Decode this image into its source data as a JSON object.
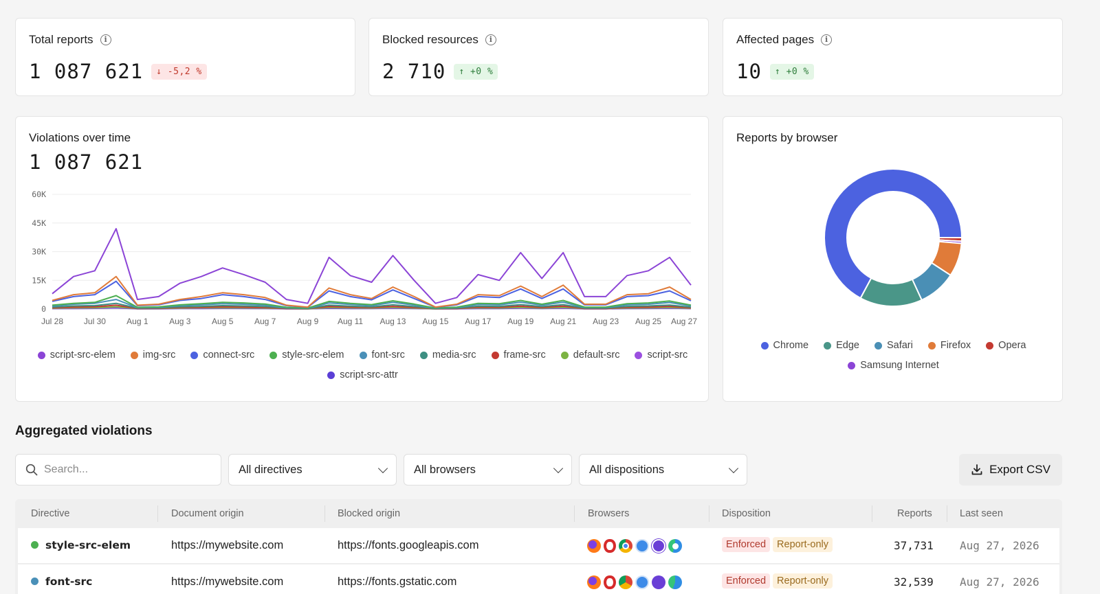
{
  "kpis": [
    {
      "label": "Total reports",
      "value": "1 087 621",
      "delta": "↓ -5,2 %",
      "trend": "down"
    },
    {
      "label": "Blocked resources",
      "value": "2 710",
      "delta": "↑ +0 %",
      "trend": "up"
    },
    {
      "label": "Affected pages",
      "value": "10",
      "delta": "↑ +0 %",
      "trend": "up"
    }
  ],
  "violations_chart": {
    "title": "Violations over time",
    "total": "1 087 621",
    "y_ticks": [
      "60K",
      "45K",
      "30K",
      "15K",
      "0"
    ],
    "x_ticks": [
      "Jul 28",
      "Jul 30",
      "Aug 1",
      "Aug 3",
      "Aug 5",
      "Aug 7",
      "Aug 9",
      "Aug 11",
      "Aug 13",
      "Aug 15",
      "Aug 17",
      "Aug 19",
      "Aug 21",
      "Aug 23",
      "Aug 25",
      "Aug 27"
    ],
    "legend": [
      {
        "label": "script-src-elem",
        "color": "#8b44d6"
      },
      {
        "label": "img-src",
        "color": "#e07b39"
      },
      {
        "label": "connect-src",
        "color": "#4c62e0"
      },
      {
        "label": "style-src-elem",
        "color": "#4caf50"
      },
      {
        "label": "font-src",
        "color": "#4a90b8"
      },
      {
        "label": "media-src",
        "color": "#3d8f82"
      },
      {
        "label": "frame-src",
        "color": "#c43a31"
      },
      {
        "label": "default-src",
        "color": "#7cb342"
      },
      {
        "label": "script-src",
        "color": "#9b4fe0"
      },
      {
        "label": "script-src-attr",
        "color": "#5b3fd6"
      }
    ]
  },
  "chart_data": [
    {
      "type": "line",
      "title": "Violations over time",
      "x": [
        "Jul 28",
        "Jul 29",
        "Jul 30",
        "Jul 31",
        "Aug 1",
        "Aug 2",
        "Aug 3",
        "Aug 4",
        "Aug 5",
        "Aug 6",
        "Aug 7",
        "Aug 8",
        "Aug 9",
        "Aug 10",
        "Aug 11",
        "Aug 12",
        "Aug 13",
        "Aug 14",
        "Aug 15",
        "Aug 16",
        "Aug 17",
        "Aug 18",
        "Aug 19",
        "Aug 20",
        "Aug 21",
        "Aug 22",
        "Aug 23",
        "Aug 24",
        "Aug 25",
        "Aug 26",
        "Aug 27"
      ],
      "ylim": [
        0,
        60000
      ],
      "series": [
        {
          "name": "script-src-elem",
          "color": "#8b44d6",
          "values": [
            8000,
            17000,
            20000,
            42000,
            5000,
            6500,
            13500,
            17000,
            21500,
            18000,
            14000,
            5000,
            3000,
            27000,
            17500,
            14000,
            28000,
            15000,
            3000,
            6000,
            18000,
            15000,
            29500,
            16000,
            29500,
            6500,
            6500,
            17500,
            20000,
            27000,
            12500
          ]
        },
        {
          "name": "img-src",
          "color": "#e07b39",
          "values": [
            4500,
            7500,
            8500,
            17000,
            2000,
            2500,
            5000,
            6500,
            8500,
            7500,
            6000,
            2000,
            1000,
            11000,
            7500,
            5500,
            11500,
            6500,
            1000,
            2500,
            7500,
            7000,
            12000,
            6500,
            12500,
            2500,
            2500,
            7500,
            8000,
            11500,
            5000
          ]
        },
        {
          "name": "connect-src",
          "color": "#4c62e0",
          "values": [
            4000,
            6500,
            7500,
            14500,
            1800,
            2200,
            4500,
            5500,
            7500,
            6500,
            5000,
            1800,
            900,
            9500,
            6500,
            4800,
            10000,
            5500,
            900,
            2200,
            6500,
            6000,
            10500,
            5500,
            10500,
            2200,
            2200,
            6500,
            7000,
            9500,
            4300
          ]
        },
        {
          "name": "style-src-elem",
          "color": "#4caf50",
          "values": [
            2000,
            3000,
            3500,
            7000,
            900,
            1100,
            2200,
            2800,
            3500,
            3200,
            2600,
            900,
            500,
            4000,
            3000,
            2300,
            4300,
            2600,
            500,
            1000,
            3000,
            2800,
            4500,
            2500,
            4500,
            1000,
            1000,
            2800,
            3200,
            4200,
            2000
          ]
        },
        {
          "name": "font-src",
          "color": "#4a90b8",
          "values": [
            1500,
            2500,
            3000,
            5000,
            700,
            900,
            1800,
            2200,
            2800,
            2500,
            2000,
            700,
            400,
            3200,
            2400,
            1800,
            3500,
            2100,
            400,
            800,
            2400,
            2200,
            3600,
            2000,
            3600,
            800,
            800,
            2200,
            2500,
            3400,
            1600
          ]
        },
        {
          "name": "media-src",
          "color": "#3d8f82",
          "values": [
            1000,
            1600,
            1800,
            3000,
            500,
            600,
            1200,
            1400,
            1800,
            1600,
            1300,
            500,
            300,
            2000,
            1500,
            1200,
            2200,
            1300,
            300,
            500,
            1500,
            1400,
            2300,
            1300,
            2300,
            500,
            500,
            1400,
            1600,
            2100,
            1000
          ]
        },
        {
          "name": "frame-src",
          "color": "#c43a31",
          "values": [
            600,
            1000,
            1200,
            2000,
            300,
            400,
            800,
            900,
            1200,
            1000,
            800,
            300,
            200,
            1300,
            1000,
            800,
            1400,
            800,
            200,
            300,
            1000,
            900,
            1500,
            800,
            1500,
            300,
            300,
            900,
            1000,
            1400,
            600
          ]
        },
        {
          "name": "default-src",
          "color": "#7cb342",
          "values": [
            400,
            600,
            700,
            1200,
            200,
            250,
            500,
            600,
            700,
            650,
            500,
            200,
            100,
            800,
            600,
            500,
            900,
            500,
            100,
            200,
            600,
            550,
            900,
            500,
            900,
            200,
            200,
            550,
            650,
            850,
            400
          ]
        },
        {
          "name": "script-src",
          "color": "#9b4fe0",
          "values": [
            300,
            400,
            500,
            900,
            150,
            180,
            350,
            400,
            500,
            450,
            380,
            150,
            80,
            600,
            450,
            350,
            650,
            380,
            80,
            150,
            450,
            420,
            650,
            380,
            650,
            150,
            150,
            420,
            480,
            620,
            300
          ]
        },
        {
          "name": "script-src-attr",
          "color": "#5b3fd6",
          "values": [
            200,
            300,
            350,
            600,
            100,
            120,
            250,
            300,
            350,
            320,
            260,
            100,
            60,
            400,
            300,
            250,
            450,
            260,
            60,
            100,
            300,
            280,
            450,
            260,
            450,
            100,
            100,
            280,
            320,
            420,
            200
          ]
        }
      ]
    },
    {
      "type": "pie",
      "title": "Reports by browser",
      "donut": true,
      "series": [
        {
          "name": "Chrome",
          "color": "#4c62e0",
          "value": 64.0
        },
        {
          "name": "Edge",
          "color": "#4a9688",
          "value": 14.0
        },
        {
          "name": "Safari",
          "color": "#4a8fb5",
          "value": 8.5
        },
        {
          "name": "Firefox",
          "color": "#e07b39",
          "value": 7.5
        },
        {
          "name": "Opera",
          "color": "#c43a31",
          "value": 0.8
        },
        {
          "name": "Samsung Internet",
          "color": "#8b44d6",
          "value": 0.5
        }
      ]
    }
  ],
  "browser_chart": {
    "title": "Reports by browser",
    "legend": [
      {
        "label": "Chrome",
        "color": "#4c62e0"
      },
      {
        "label": "Edge",
        "color": "#4a9688"
      },
      {
        "label": "Safari",
        "color": "#4a8fb5"
      },
      {
        "label": "Firefox",
        "color": "#e07b39"
      },
      {
        "label": "Opera",
        "color": "#c43a31"
      },
      {
        "label": "Samsung Internet",
        "color": "#8b44d6"
      }
    ]
  },
  "aggregated": {
    "title": "Aggregated violations",
    "search_placeholder": "Search...",
    "filters": [
      "All directives",
      "All browsers",
      "All dispositions"
    ],
    "export_label": "Export CSV",
    "columns": [
      "Directive",
      "Document origin",
      "Blocked origin",
      "Browsers",
      "Disposition",
      "Reports",
      "Last seen"
    ],
    "rows": [
      {
        "directive": "style-src-elem",
        "dot_color": "#4caf50",
        "document_origin": "https://mywebsite.com",
        "blocked_origin": "https://fonts.googleapis.com",
        "dispositions": [
          "Enforced",
          "Report-only"
        ],
        "reports": "37,731",
        "last_seen": "Aug 27, 2026"
      },
      {
        "directive": "font-src",
        "dot_color": "#4a90b8",
        "document_origin": "https://mywebsite.com",
        "blocked_origin": "https://fonts.gstatic.com",
        "dispositions": [
          "Enforced",
          "Report-only"
        ],
        "reports": "32,539",
        "last_seen": "Aug 27, 2026"
      }
    ]
  }
}
